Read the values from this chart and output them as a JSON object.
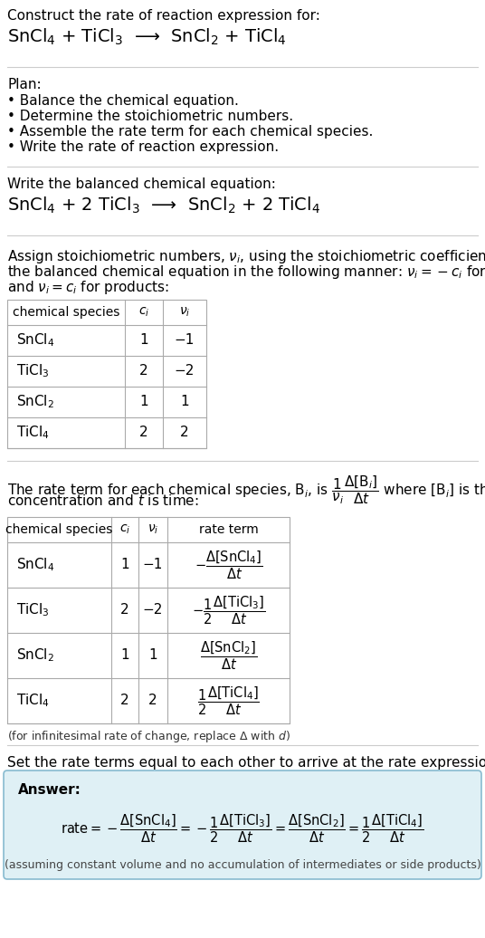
{
  "bg_color": "#ffffff",
  "answer_bg_color": "#dff0f5",
  "answer_border_color": "#88bbd0",
  "text_color": "#000000",
  "section1_title": "Construct the rate of reaction expression for:",
  "section1_eq": "SnCl$_4$ + TiCl$_3$  ⟶  SnCl$_2$ + TiCl$_4$",
  "plan_title": "Plan:",
  "plan_items": [
    "• Balance the chemical equation.",
    "• Determine the stoichiometric numbers.",
    "• Assemble the rate term for each chemical species.",
    "• Write the rate of reaction expression."
  ],
  "balanced_title": "Write the balanced chemical equation:",
  "balanced_eq": "SnCl$_4$ + 2 TiCl$_3$  ⟶  SnCl$_2$ + 2 TiCl$_4$",
  "stoich_intro_lines": [
    "Assign stoichiometric numbers, $\\nu_i$, using the stoichiometric coefficients, $c_i$, from",
    "the balanced chemical equation in the following manner: $\\nu_i = -c_i$ for reactants",
    "and $\\nu_i = c_i$ for products:"
  ],
  "table1_headers": [
    "chemical species",
    "$c_i$",
    "$\\nu_i$"
  ],
  "table1_rows": [
    [
      "SnCl$_4$",
      "1",
      "−1"
    ],
    [
      "TiCl$_3$",
      "2",
      "−2"
    ],
    [
      "SnCl$_2$",
      "1",
      "1"
    ],
    [
      "TiCl$_4$",
      "2",
      "2"
    ]
  ],
  "rate_intro_lines": [
    "The rate term for each chemical species, B$_i$, is $\\dfrac{1}{\\nu_i}\\dfrac{\\Delta[\\mathrm{B}_i]}{\\Delta t}$ where [B$_i$] is the amount",
    "concentration and $t$ is time:"
  ],
  "table2_headers": [
    "chemical species",
    "$c_i$",
    "$\\nu_i$",
    "rate term"
  ],
  "table2_rows": [
    [
      "SnCl$_4$",
      "1",
      "−1",
      "$-\\dfrac{\\Delta[\\mathrm{SnCl_4}]}{\\Delta t}$"
    ],
    [
      "TiCl$_3$",
      "2",
      "−2",
      "$-\\dfrac{1}{2}\\dfrac{\\Delta[\\mathrm{TiCl_3}]}{\\Delta t}$"
    ],
    [
      "SnCl$_2$",
      "1",
      "1",
      "$\\dfrac{\\Delta[\\mathrm{SnCl_2}]}{\\Delta t}$"
    ],
    [
      "TiCl$_4$",
      "2",
      "2",
      "$\\dfrac{1}{2}\\dfrac{\\Delta[\\mathrm{TiCl_4}]}{\\Delta t}$"
    ]
  ],
  "infinitesimal_note": "(for infinitesimal rate of change, replace Δ with $d$)",
  "set_equal_text": "Set the rate terms equal to each other to arrive at the rate expression:",
  "answer_label": "Answer:",
  "answer_eq": "$\\mathrm{rate} = -\\dfrac{\\Delta[\\mathrm{SnCl_4}]}{\\Delta t} = -\\dfrac{1}{2}\\dfrac{\\Delta[\\mathrm{TiCl_3}]}{\\Delta t} = \\dfrac{\\Delta[\\mathrm{SnCl_2}]}{\\Delta t} = \\dfrac{1}{2}\\dfrac{\\Delta[\\mathrm{TiCl_4}]}{\\Delta t}$",
  "answer_note": "(assuming constant volume and no accumulation of intermediates or side products)"
}
